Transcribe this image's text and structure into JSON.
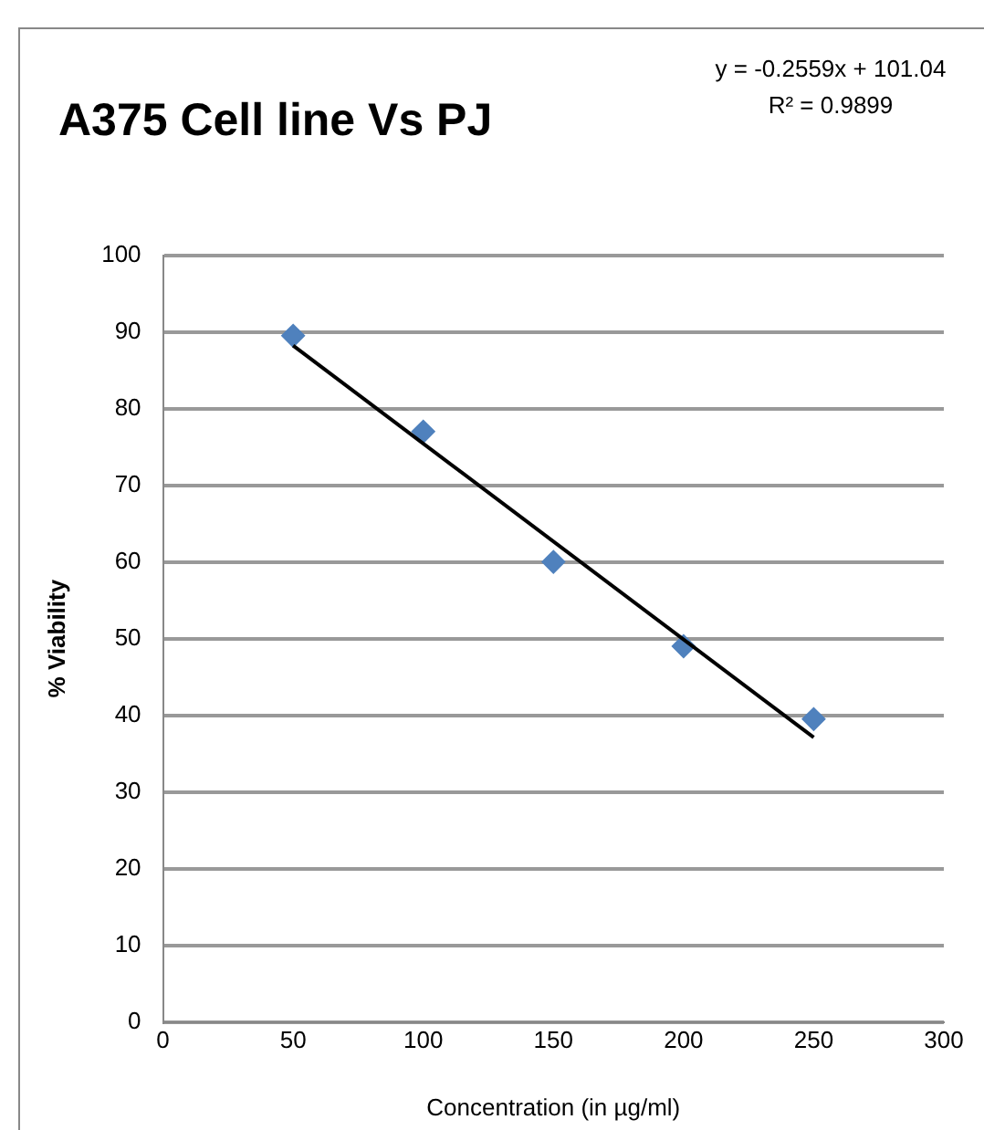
{
  "chart_data": {
    "type": "scatter",
    "title": "A375 Cell line Vs PJ",
    "xlabel": "Concentration (in µg/ml)",
    "ylabel": "% Viability",
    "annotations": [
      "y = -0.2559x + 101.04",
      "R² = 0.9899"
    ],
    "series": [
      {
        "color": "#4f81bd",
        "marker": "diamond",
        "x": [
          50,
          100,
          150,
          200,
          250
        ],
        "values": [
          89.5,
          77,
          60,
          49,
          39.5
        ]
      },
      {
        "type": "line",
        "color": "#000000",
        "marker": "none",
        "line_style": "solid",
        "x": [
          50,
          250
        ],
        "values": [
          88.2,
          37.1
        ]
      }
    ],
    "xlim": [
      0,
      300
    ],
    "xticks": [
      0,
      50,
      100,
      150,
      200,
      250,
      300
    ],
    "ylim": [
      0,
      100
    ],
    "yticks": [
      0,
      10,
      20,
      30,
      40,
      50,
      60,
      70,
      80,
      90,
      100
    ],
    "grid": "y",
    "legend": false
  }
}
